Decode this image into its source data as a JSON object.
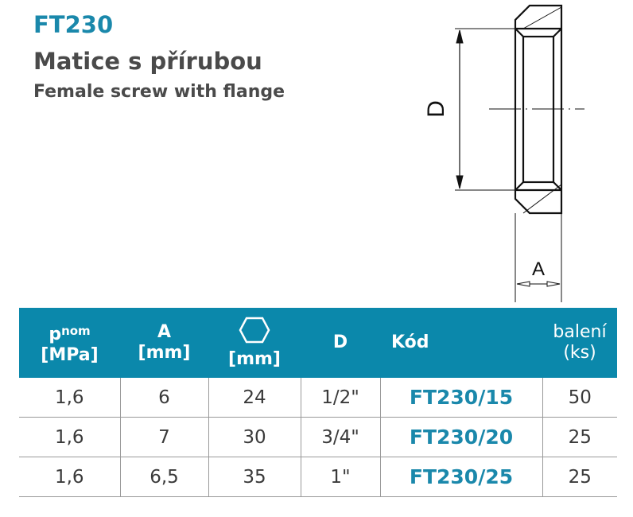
{
  "header": {
    "code": "FT230",
    "title": "Matice s přírubou",
    "subtitle": "Female screw with flange"
  },
  "drawing": {
    "label_d": "D",
    "label_a": "A"
  },
  "table": {
    "headers": {
      "p": "p",
      "p_sub": "nom",
      "p_unit": "[MPa]",
      "a": "A",
      "a_unit": "[mm]",
      "hex_icon": "hexagon-icon",
      "hex_unit": "[mm]",
      "d": "D",
      "kod": "Kód",
      "pack": "balení",
      "pack_unit": "(ks)"
    },
    "accent": "#0b88ab",
    "rows": [
      {
        "p": "1,6",
        "a": "6",
        "hex": "24",
        "d": "1/2\"",
        "kod": "FT230/15",
        "pack": "50"
      },
      {
        "p": "1,6",
        "a": "7",
        "hex": "30",
        "d": "3/4\"",
        "kod": "FT230/20",
        "pack": "25"
      },
      {
        "p": "1,6",
        "a": "6,5",
        "hex": "35",
        "d": "1\"",
        "kod": "FT230/25",
        "pack": "25"
      }
    ]
  }
}
